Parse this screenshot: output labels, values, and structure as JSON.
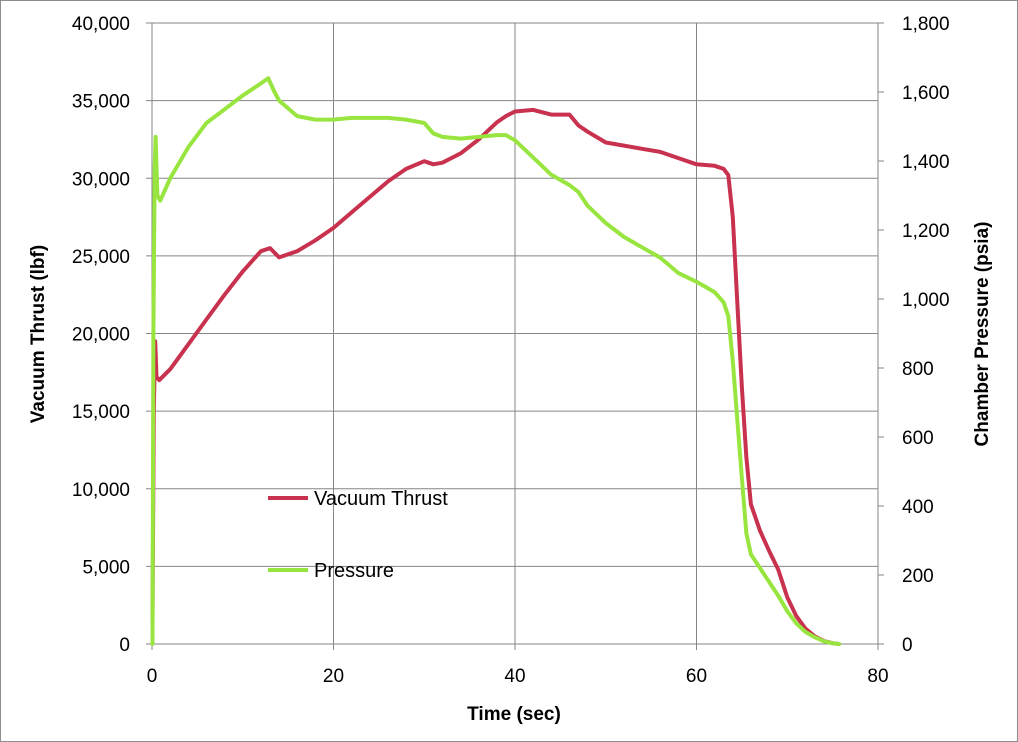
{
  "chart_data": {
    "type": "line",
    "title": "",
    "xlabel": "Time (sec)",
    "ylabel": "Vacuum Thrust (lbf)",
    "y2label": "Chamber Pressure (psia)",
    "xlim": [
      0,
      80
    ],
    "ylim": [
      0,
      40000
    ],
    "y2lim": [
      0,
      1800
    ],
    "x_ticks": [
      0,
      20,
      40,
      60,
      80
    ],
    "x_tick_labels": [
      "0",
      "20",
      "40",
      "60",
      "80"
    ],
    "y_ticks": [
      0,
      5000,
      10000,
      15000,
      20000,
      25000,
      30000,
      35000,
      40000
    ],
    "y_tick_labels": [
      "0",
      "5,000",
      "10,000",
      "15,000",
      "20,000",
      "25,000",
      "30,000",
      "35,000",
      "40,000"
    ],
    "y2_ticks": [
      0,
      200,
      400,
      600,
      800,
      1000,
      1200,
      1400,
      1600,
      1800
    ],
    "y2_tick_labels": [
      "0",
      "200",
      "400",
      "600",
      "800",
      "1,000",
      "1,200",
      "1,400",
      "1,600",
      "1,800"
    ],
    "grid": true,
    "legend": "inside-lower-left",
    "series": [
      {
        "name": "Vacuum Thrust",
        "axis": "left",
        "color": "#c8324e",
        "x": [
          0.05,
          0.2,
          0.35,
          0.5,
          0.8,
          2,
          4,
          6,
          8,
          10,
          12,
          13,
          14,
          16,
          18,
          20,
          22,
          24,
          26,
          28,
          30,
          31,
          32,
          34,
          36,
          38,
          39,
          40,
          42,
          44,
          46,
          47,
          48,
          50,
          52,
          54,
          56,
          58,
          60,
          62,
          63,
          63.5,
          64,
          64.5,
          65,
          65.5,
          66,
          67,
          68,
          69,
          70,
          71,
          72,
          73,
          74,
          75,
          75.7
        ],
        "y": [
          1500,
          15000,
          19500,
          17200,
          17000,
          17700,
          19300,
          20900,
          22500,
          24000,
          25300,
          25500,
          24900,
          25300,
          26000,
          26800,
          27800,
          28800,
          29800,
          30600,
          31100,
          30900,
          31000,
          31600,
          32500,
          33600,
          34000,
          34300,
          34400,
          34100,
          34100,
          33400,
          33000,
          32300,
          32100,
          31900,
          31700,
          31300,
          30900,
          30800,
          30600,
          30200,
          27500,
          22000,
          16500,
          12000,
          9000,
          7300,
          6000,
          4800,
          3000,
          1800,
          1000,
          500,
          200,
          50,
          0
        ]
      },
      {
        "name": "Pressure",
        "axis": "right",
        "color": "#99e53f",
        "x": [
          0.05,
          0.15,
          0.3,
          0.4,
          0.45,
          0.6,
          0.9,
          2,
          4,
          6,
          8,
          10,
          12,
          12.8,
          13.5,
          14,
          16,
          18,
          20,
          22,
          24,
          26,
          28,
          30,
          31,
          32,
          34,
          36,
          38,
          39,
          40,
          42,
          44,
          46,
          47,
          48,
          50,
          52,
          54,
          56,
          58,
          60,
          62,
          63,
          63.5,
          64,
          64.5,
          65,
          65.5,
          66,
          67,
          68,
          69,
          70,
          71,
          72,
          73,
          74,
          75,
          75.7
        ],
        "y": [
          0,
          900,
          1380,
          1470,
          1420,
          1300,
          1285,
          1350,
          1440,
          1510,
          1550,
          1590,
          1625,
          1640,
          1600,
          1575,
          1530,
          1520,
          1520,
          1525,
          1525,
          1525,
          1520,
          1510,
          1480,
          1470,
          1465,
          1470,
          1475,
          1475,
          1460,
          1410,
          1360,
          1330,
          1310,
          1270,
          1220,
          1180,
          1150,
          1120,
          1075,
          1050,
          1020,
          990,
          950,
          820,
          650,
          480,
          320,
          260,
          220,
          180,
          140,
          95,
          60,
          35,
          20,
          8,
          2,
          0
        ]
      }
    ]
  }
}
